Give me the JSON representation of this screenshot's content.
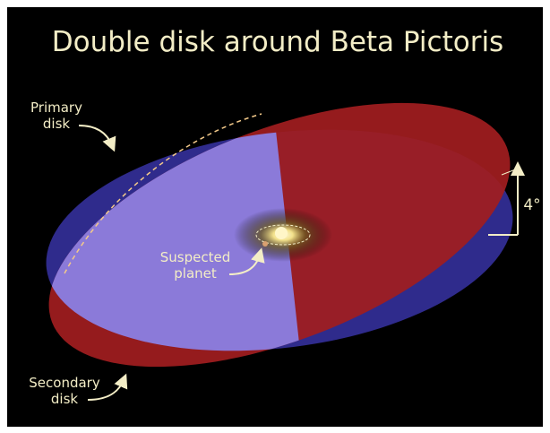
{
  "title": "Double disk around Beta Pictoris",
  "labels": {
    "primary_disk": [
      "Primary",
      "disk"
    ],
    "secondary_disk": [
      "Secondary",
      "disk"
    ],
    "suspected_planet": [
      "Suspected",
      "planet"
    ],
    "angle": "4°"
  }
}
